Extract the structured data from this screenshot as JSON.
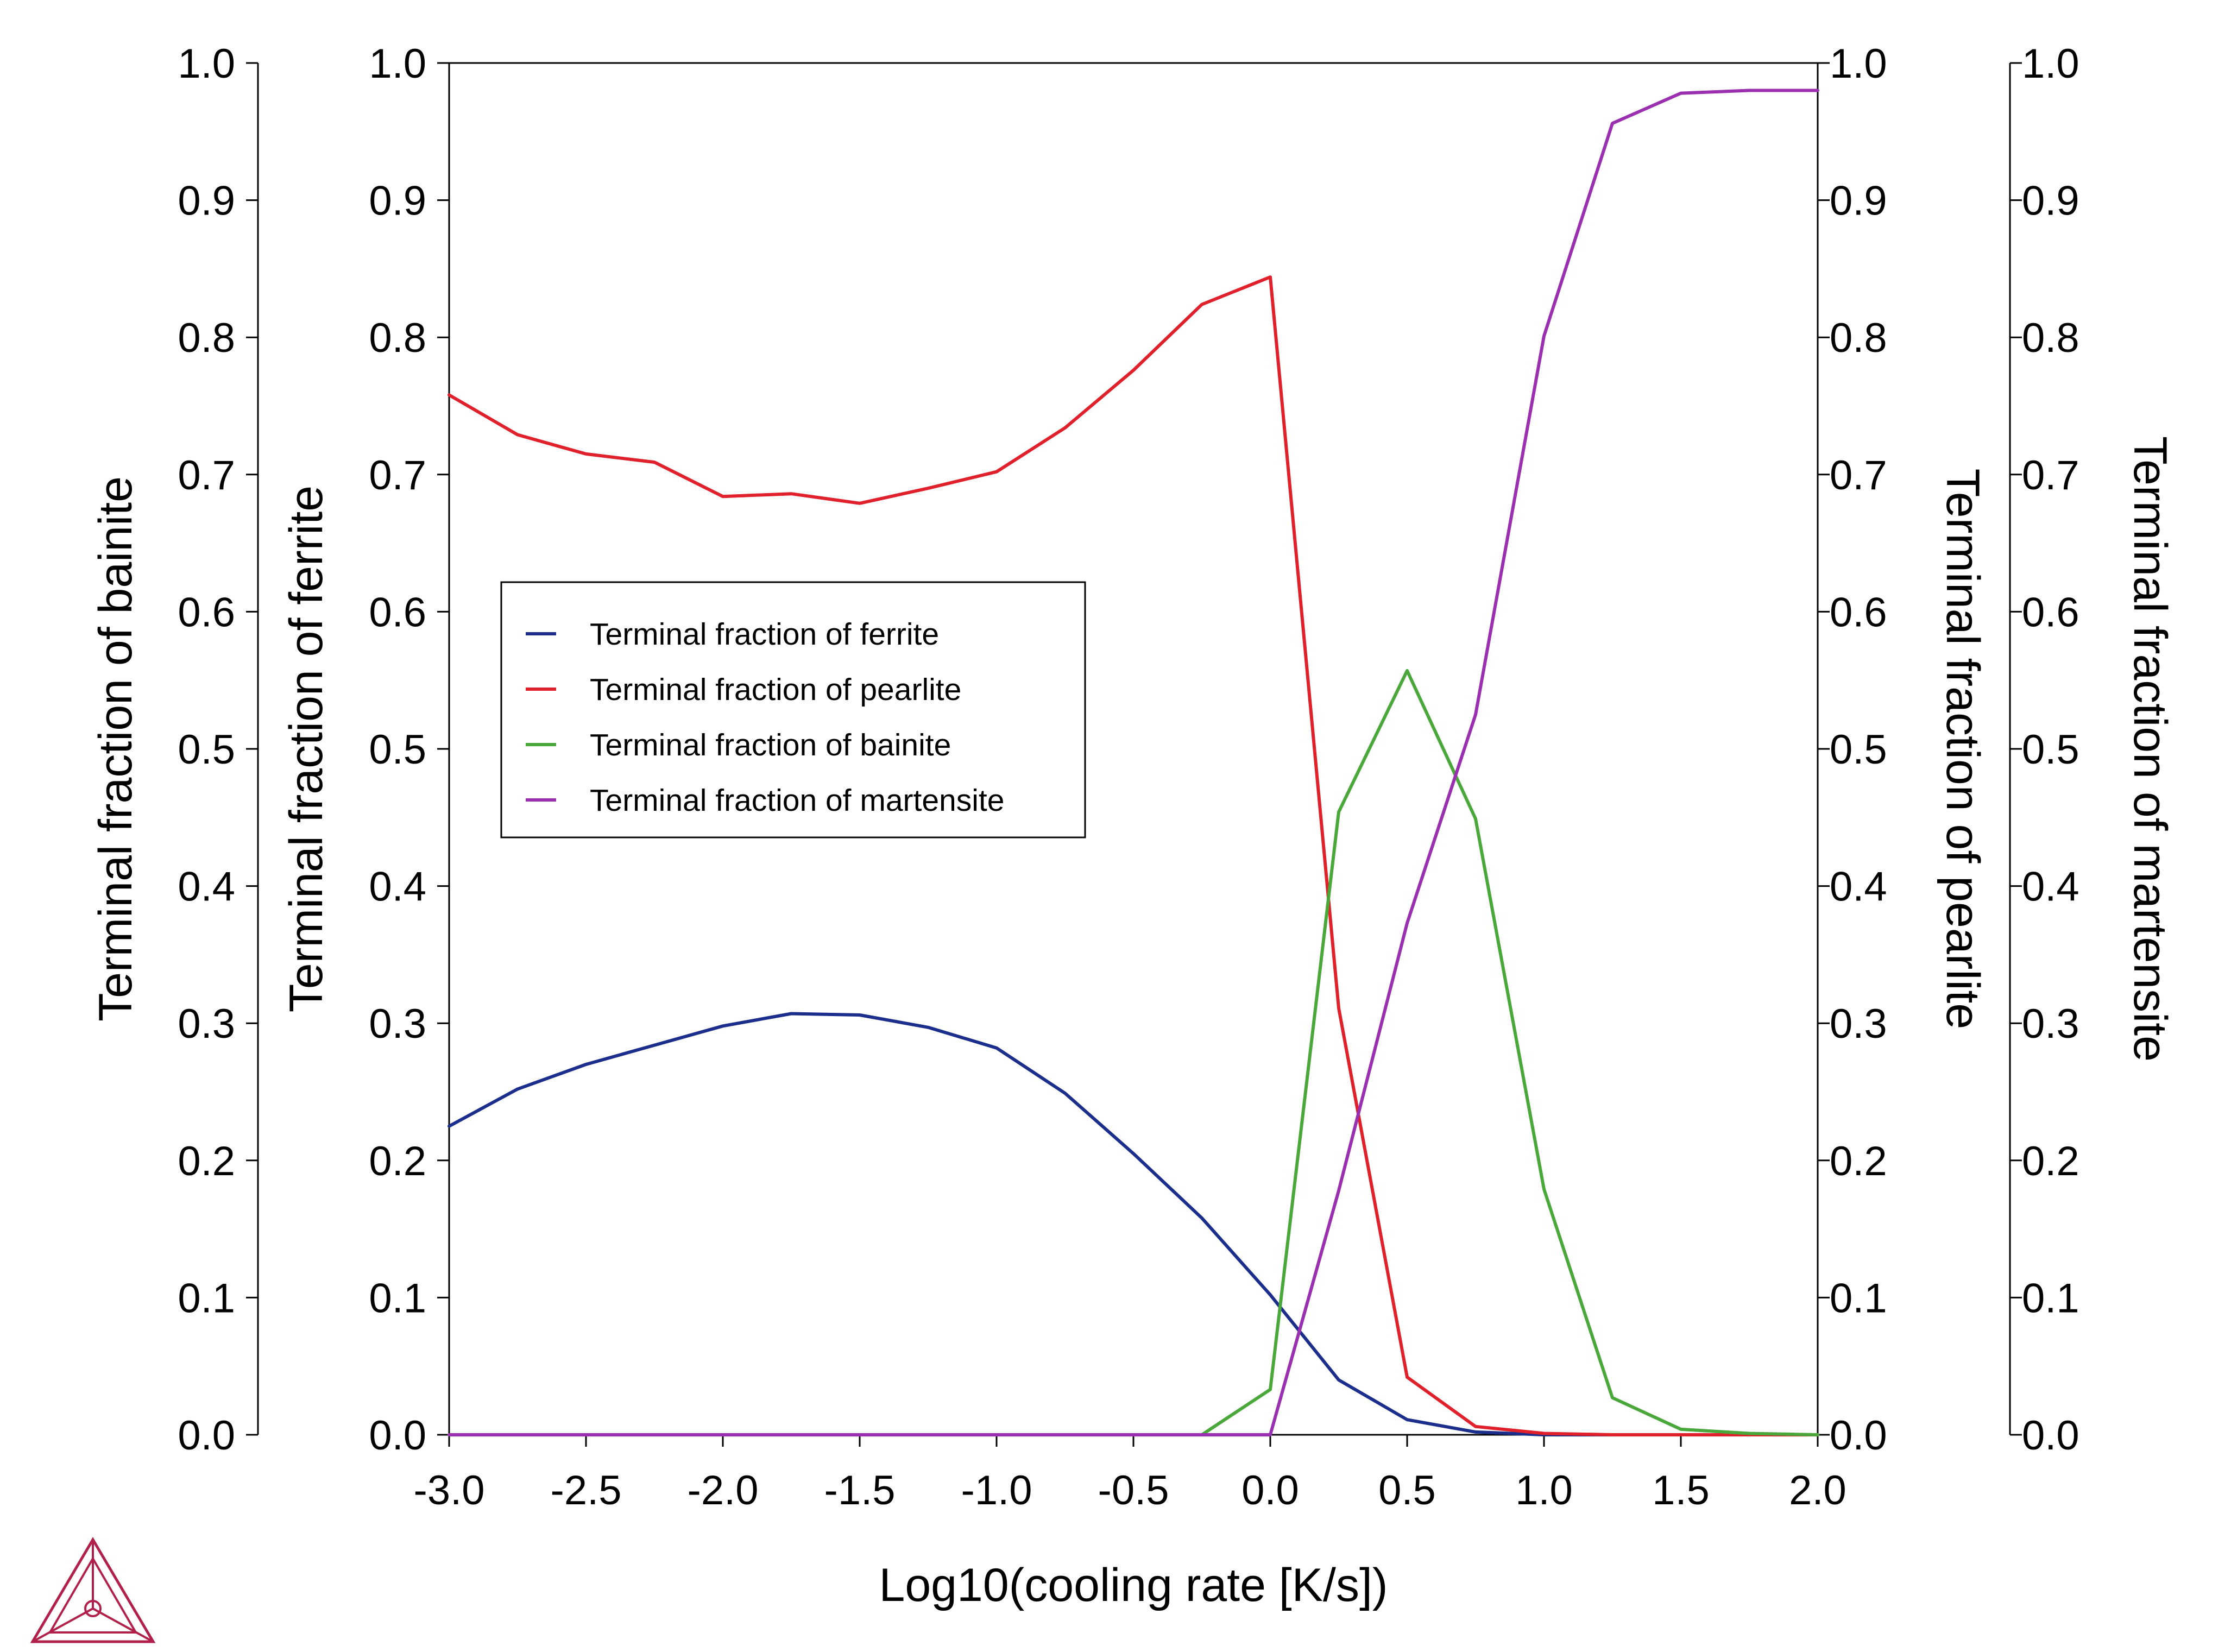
{
  "chart_data": {
    "type": "line",
    "xlabel": "Log10(cooling rate [K/s])",
    "xlim": [
      -3.0,
      2.0
    ],
    "ylim": [
      0.0,
      1.0
    ],
    "x_ticks": [
      "-3.0",
      "-2.5",
      "-2.0",
      "-1.5",
      "-1.0",
      "-0.5",
      "0.0",
      "0.5",
      "1.0",
      "1.5",
      "2.0"
    ],
    "y_ticks": [
      "0.0",
      "0.1",
      "0.2",
      "0.3",
      "0.4",
      "0.5",
      "0.6",
      "0.7",
      "0.8",
      "0.9",
      "1.0"
    ],
    "y_axes": [
      {
        "label": "Terminal fraction of bainite",
        "side": "left-outer"
      },
      {
        "label": "Terminal fraction of ferrite",
        "side": "left-inner"
      },
      {
        "label": "Terminal fraction of pearlite",
        "side": "right-inner"
      },
      {
        "label": "Terminal fraction of martensite",
        "side": "right-outer"
      }
    ],
    "legend_position": "center-left",
    "grid": false,
    "series": [
      {
        "name": "Terminal fraction of ferrite",
        "color": "#1c2e8c",
        "x": [
          -3.0,
          -2.75,
          -2.5,
          -2.25,
          -2.0,
          -1.75,
          -1.5,
          -1.25,
          -1.0,
          -0.75,
          -0.5,
          -0.25,
          0.0,
          0.25,
          0.5,
          0.75,
          1.0,
          1.25,
          1.5,
          1.75,
          2.0
        ],
        "y": [
          0.225,
          0.252,
          0.27,
          0.284,
          0.298,
          0.307,
          0.306,
          0.297,
          0.282,
          0.249,
          0.205,
          0.158,
          0.102,
          0.04,
          0.011,
          0.002,
          0.0,
          0.0,
          0.0,
          0.0,
          0.0
        ]
      },
      {
        "name": "Terminal fraction of pearlite",
        "color": "#e0202a",
        "x": [
          -3.0,
          -2.75,
          -2.5,
          -2.25,
          -2.0,
          -1.75,
          -1.5,
          -1.25,
          -1.0,
          -0.75,
          -0.5,
          -0.25,
          0.0,
          0.25,
          0.5,
          0.75,
          1.0,
          1.25,
          1.5,
          1.75,
          2.0
        ],
        "y": [
          0.758,
          0.729,
          0.715,
          0.709,
          0.684,
          0.686,
          0.679,
          0.69,
          0.702,
          0.734,
          0.776,
          0.824,
          0.844,
          0.311,
          0.042,
          0.006,
          0.001,
          0.0,
          0.0,
          0.0,
          0.0
        ]
      },
      {
        "name": "Terminal fraction of bainite",
        "color": "#4aa83a",
        "x": [
          -3.0,
          -2.75,
          -2.5,
          -2.25,
          -2.0,
          -1.75,
          -1.5,
          -1.25,
          -1.0,
          -0.75,
          -0.5,
          -0.25,
          0.0,
          0.25,
          0.5,
          0.75,
          1.0,
          1.25,
          1.5,
          1.75,
          2.0
        ],
        "y": [
          0.0,
          0.0,
          0.0,
          0.0,
          0.0,
          0.0,
          0.0,
          0.0,
          0.0,
          0.0,
          0.0,
          0.0,
          0.033,
          0.454,
          0.557,
          0.449,
          0.179,
          0.027,
          0.004,
          0.001,
          0.0
        ]
      },
      {
        "name": "Terminal fraction of martensite",
        "color": "#9a30b0",
        "x": [
          -3.0,
          -2.75,
          -2.5,
          -2.25,
          -2.0,
          -1.75,
          -1.5,
          -1.25,
          -1.0,
          -0.75,
          -0.5,
          -0.25,
          0.0,
          0.25,
          0.5,
          0.75,
          1.0,
          1.25,
          1.5,
          1.75,
          2.0
        ],
        "y": [
          0.0,
          0.0,
          0.0,
          0.0,
          0.0,
          0.0,
          0.0,
          0.0,
          0.0,
          0.0,
          0.0,
          0.0,
          0.0,
          0.178,
          0.373,
          0.525,
          0.801,
          0.956,
          0.978,
          0.98,
          0.98
        ]
      }
    ]
  },
  "logo": {
    "name": "thermo-calc-logo-icon",
    "color": "#b0204a"
  }
}
